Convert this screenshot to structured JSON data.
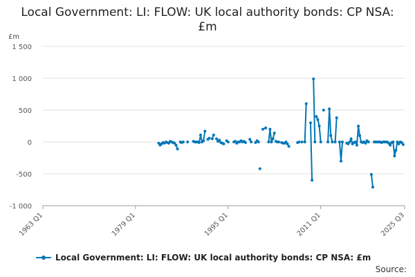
{
  "chart_data": {
    "type": "line",
    "title": "Local Government: LI: FLOW: UK local authority bonds: CP NSA: £m",
    "ylabel": "£m",
    "xlabel": "",
    "ylim": [
      -1000,
      1500
    ],
    "yticks": [
      -1000,
      -500,
      0,
      500,
      1000,
      1500
    ],
    "ytick_labels": [
      "-1 000",
      "-500",
      "0",
      "500",
      "1 000",
      "1 500"
    ],
    "xlim": [
      1963,
      2025.5
    ],
    "xticks": [
      1963,
      1979,
      1995,
      2011,
      2025.5
    ],
    "xtick_labels": [
      "1963 Q1",
      "1979 Q1",
      "1995 Q1",
      "2011 Q1",
      "2025 Q3"
    ],
    "grid": "horizontal",
    "legend_position": "bottom",
    "color": "#0077b6",
    "series": [
      {
        "name": "Local Government: LI: FLOW: UK local authority bonds: CP NSA: £m",
        "segments": [
          [
            [
              1983.0,
              -20
            ],
            [
              1983.25,
              -50
            ],
            [
              1983.5,
              -30
            ],
            [
              1983.75,
              -10
            ],
            [
              1984.0,
              -20
            ],
            [
              1984.25,
              0
            ],
            [
              1984.5,
              -10
            ],
            [
              1984.75,
              -20
            ],
            [
              1985.0,
              10
            ],
            [
              1985.25,
              0
            ],
            [
              1985.5,
              -10
            ],
            [
              1985.75,
              -20
            ],
            [
              1986.0,
              -50
            ],
            [
              1986.25,
              -110
            ]
          ],
          [
            [
              1986.75,
              0
            ],
            [
              1987.0,
              -10
            ],
            [
              1987.25,
              0
            ]
          ],
          [
            [
              1988.0,
              0
            ]
          ],
          [
            [
              1989.0,
              10
            ],
            [
              1989.25,
              0
            ],
            [
              1989.5,
              0
            ],
            [
              1989.75,
              0
            ],
            [
              1990.0,
              -10
            ],
            [
              1990.25,
              110
            ],
            [
              1990.5,
              0
            ],
            [
              1990.75,
              20
            ],
            [
              1991.0,
              170
            ]
          ],
          [
            [
              1991.5,
              40
            ],
            [
              1991.75,
              60
            ]
          ],
          [
            [
              1992.25,
              50
            ],
            [
              1992.5,
              110
            ]
          ],
          [
            [
              1993.0,
              50
            ],
            [
              1993.25,
              10
            ],
            [
              1993.5,
              30
            ],
            [
              1993.75,
              -10
            ],
            [
              1994.0,
              -20
            ],
            [
              1994.25,
              -30
            ]
          ],
          [
            [
              1994.75,
              20
            ],
            [
              1995.0,
              0
            ]
          ],
          [
            [
              1996.0,
              0
            ],
            [
              1996.25,
              10
            ],
            [
              1996.5,
              -20
            ],
            [
              1996.75,
              0
            ],
            [
              1997.0,
              0
            ],
            [
              1997.25,
              20
            ],
            [
              1997.5,
              0
            ],
            [
              1997.75,
              10
            ],
            [
              1998.0,
              -10
            ]
          ],
          [
            [
              1998.75,
              40
            ],
            [
              1999.0,
              0
            ]
          ],
          [
            [
              1999.75,
              -10
            ],
            [
              2000.0,
              20
            ],
            [
              2000.25,
              0
            ]
          ],
          [
            [
              2000.5,
              -420
            ]
          ],
          [
            [
              2001.0,
              200
            ],
            [
              2001.5,
              220
            ]
          ],
          [
            [
              2002.0,
              0
            ],
            [
              2002.25,
              200
            ],
            [
              2002.5,
              0
            ],
            [
              2002.75,
              50
            ],
            [
              2003.0,
              140
            ]
          ],
          [
            [
              2003.25,
              10
            ],
            [
              2003.5,
              0
            ],
            [
              2003.75,
              0
            ]
          ],
          [
            [
              2004.25,
              -10
            ],
            [
              2004.5,
              -20
            ],
            [
              2004.75,
              -20
            ],
            [
              2005.0,
              0
            ],
            [
              2005.25,
              -30
            ],
            [
              2005.5,
              -70
            ]
          ],
          [
            [
              2007.0,
              -10
            ],
            [
              2007.25,
              0
            ]
          ],
          [
            [
              2007.75,
              0
            ]
          ],
          [
            [
              2008.25,
              0
            ],
            [
              2008.5,
              600
            ]
          ],
          [
            [
              2009.25,
              300
            ],
            [
              2009.5,
              -600
            ]
          ],
          [
            [
              2009.75,
              990
            ],
            [
              2010.0,
              0
            ]
          ],
          [
            [
              2010.25,
              400
            ],
            [
              2010.5,
              350
            ],
            [
              2010.75,
              250
            ],
            [
              2011.0,
              0
            ]
          ],
          [
            [
              2011.5,
              500
            ]
          ],
          [
            [
              2012.25,
              0
            ],
            [
              2012.5,
              520
            ],
            [
              2012.75,
              100
            ],
            [
              2013.0,
              0
            ]
          ],
          [
            [
              2013.5,
              0
            ],
            [
              2013.75,
              380
            ]
          ],
          [
            [
              2014.25,
              0
            ],
            [
              2014.5,
              -300
            ],
            [
              2014.75,
              0
            ]
          ],
          [
            [
              2015.5,
              -20
            ],
            [
              2015.75,
              -30
            ],
            [
              2016.0,
              0
            ],
            [
              2016.25,
              50
            ],
            [
              2016.5,
              -30
            ],
            [
              2016.75,
              -10
            ],
            [
              2017.0,
              0
            ],
            [
              2017.25,
              -50
            ],
            [
              2017.5,
              250
            ],
            [
              2017.75,
              100
            ],
            [
              2018.0,
              0
            ],
            [
              2018.25,
              -10
            ],
            [
              2018.5,
              0
            ],
            [
              2018.75,
              -20
            ],
            [
              2019.0,
              20
            ],
            [
              2019.25,
              0
            ]
          ],
          [
            [
              2019.75,
              -510
            ],
            [
              2020.0,
              -710
            ]
          ],
          [
            [
              2020.25,
              0
            ],
            [
              2020.5,
              0
            ],
            [
              2020.75,
              0
            ],
            [
              2021.0,
              0
            ],
            [
              2021.25,
              0
            ],
            [
              2021.5,
              -10
            ],
            [
              2021.75,
              0
            ],
            [
              2022.0,
              0
            ],
            [
              2022.25,
              0
            ],
            [
              2022.5,
              0
            ],
            [
              2022.75,
              -20
            ],
            [
              2023.0,
              -50
            ],
            [
              2023.25,
              -10
            ],
            [
              2023.5,
              0
            ],
            [
              2023.75,
              -220
            ],
            [
              2024.0,
              -130
            ],
            [
              2024.25,
              0
            ],
            [
              2024.5,
              -30
            ],
            [
              2024.75,
              0
            ],
            [
              2025.0,
              -10
            ],
            [
              2025.25,
              -40
            ]
          ]
        ]
      }
    ]
  },
  "legend": {
    "label": "Local Government: LI: FLOW: UK local authority bonds: CP NSA: £m"
  },
  "source_label": "Source:"
}
